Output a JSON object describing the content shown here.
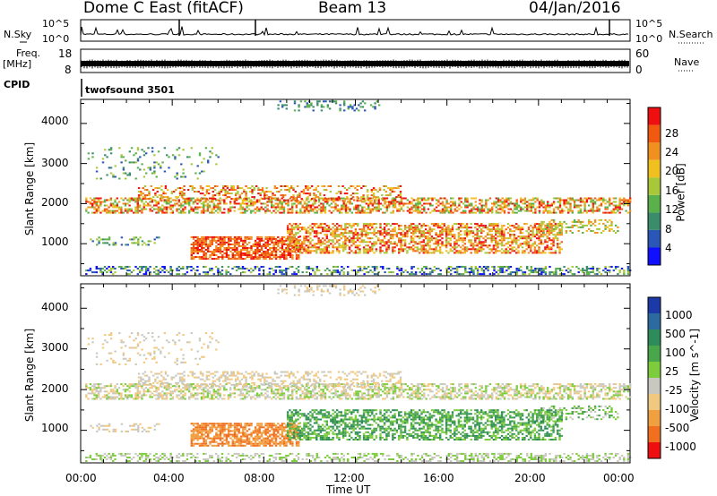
{
  "header": {
    "station": "Dome C East (fitACF)",
    "beam": "Beam 13",
    "date": "04/Jan/2016"
  },
  "left_labels": {
    "nsky": "N.Sky",
    "freq_line1": "Freq.",
    "freq_line2": "[MHz]",
    "cpid": "CPID"
  },
  "right_labels": {
    "nsearch": "N.Search",
    "nave": "Nave"
  },
  "cpid_value": "twofsound 3501",
  "chart_data": [
    {
      "type": "line",
      "panel": "noise",
      "left_axis": {
        "ticks": [
          "10^5",
          "10^0"
        ]
      },
      "right_axis": {
        "ticks": [
          "10^5",
          "10^0"
        ]
      }
    },
    {
      "type": "line",
      "panel": "frequency",
      "left_axis": {
        "ticks": [
          18,
          8
        ],
        "label": "Freq. [MHz]"
      },
      "right_axis": {
        "ticks": [
          60,
          0
        ]
      }
    },
    {
      "type": "heatmap",
      "panel": "power",
      "ylabel": "Slant Range [km]",
      "yticks": [
        1000,
        2000,
        3000,
        4000
      ],
      "ylim": [
        200,
        4600
      ],
      "xlim_hours": [
        0,
        24
      ],
      "colorbar": {
        "label": "Power [dB]",
        "ticks": [
          4,
          8,
          12,
          16,
          20,
          24,
          28
        ],
        "colors": [
          "#1010ff",
          "#2a56b8",
          "#3a8c6a",
          "#5ab04a",
          "#a8c83a",
          "#f0c020",
          "#f09020",
          "#f05a10",
          "#ee1010"
        ]
      }
    },
    {
      "type": "heatmap",
      "panel": "velocity",
      "ylabel": "Slant Range [km]",
      "yticks": [
        1000,
        2000,
        3000,
        4000
      ],
      "ylim": [
        200,
        4600
      ],
      "xlim_hours": [
        0,
        24
      ],
      "colorbar": {
        "label": "Velocity [m s^-1]",
        "ticks": [
          1000,
          500,
          100,
          25,
          -25,
          -100,
          -500,
          -1000
        ],
        "colors": [
          "#1b3aa8",
          "#2c6aa0",
          "#2e8c5a",
          "#4aa64a",
          "#7ccc3c",
          "#c8c8c0",
          "#f0c880",
          "#f0a040",
          "#f07020",
          "#ee1010"
        ]
      }
    }
  ],
  "x_axis": {
    "label": "Time UT",
    "ticks": [
      "00:00",
      "04:00",
      "08:00",
      "12:00",
      "16:00",
      "20:00",
      "00:00"
    ]
  }
}
